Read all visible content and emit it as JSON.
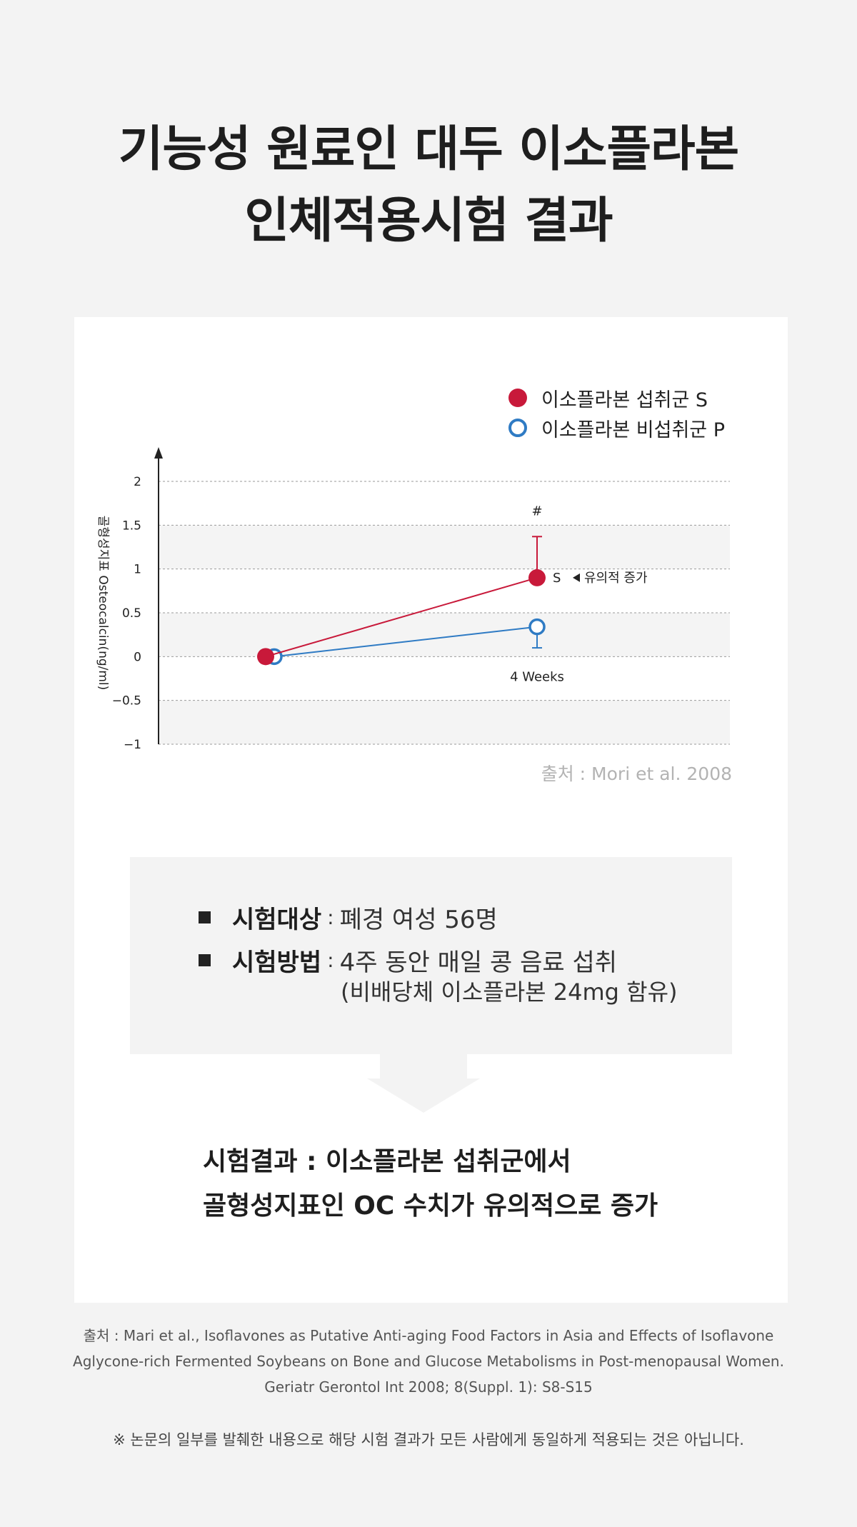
{
  "title": {
    "line1": "기능성 원료인 대두 이소플라본",
    "line2": "인체적용시험 결과"
  },
  "legend": {
    "items": [
      {
        "label": "이소플라본 섭취군 S",
        "style": "filled"
      },
      {
        "label": "이소플라본 비섭취군 P",
        "style": "hollow"
      }
    ]
  },
  "chart_data": {
    "type": "line",
    "ylabel": "골형성지표 Osteocalcin(ng/ml)",
    "ylim": [
      -1,
      2
    ],
    "yticks": [
      {
        "value": 2,
        "label": "2"
      },
      {
        "value": 1.5,
        "label": "1.5"
      },
      {
        "value": 1,
        "label": "1"
      },
      {
        "value": 0.5,
        "label": "0.5"
      },
      {
        "value": 0,
        "label": "0"
      },
      {
        "value": -0.5,
        "label": "−0.5"
      },
      {
        "value": -1,
        "label": "−1"
      }
    ],
    "grid": true,
    "series": [
      {
        "name": "이소플라본 섭취군 S",
        "color": "#c8193a",
        "marker": "filled",
        "x": [
          0,
          4
        ],
        "y": [
          0,
          0.9
        ],
        "error_upper": 0.47
      },
      {
        "name": "이소플라본 비섭취군 P",
        "color": "#2f7bc4",
        "marker": "hollow",
        "x": [
          0,
          4
        ],
        "y": [
          0,
          0.34
        ],
        "error_lower": 0.24
      }
    ],
    "annotations": {
      "significance": "#",
      "s_label": "S",
      "increase_label": "유의적 증가",
      "x_label": "4 Weeks"
    }
  },
  "source_chart": "출처 : Mori et al. 2008",
  "info": {
    "subject_label": "시험대상",
    "subject_text": "폐경 여성 56명",
    "method_label": "시험방법",
    "method_text": "4주 동안 매일 콩 음료 섭취",
    "method_sub": "(비배당체 이소플라본 24mg 함유)",
    "separator": ":"
  },
  "result": {
    "line1": "시험결과 : 이소플라본 섭취군에서",
    "line2": "골형성지표인 OC 수치가 유의적으로 증가"
  },
  "citation": {
    "line1": "출처 : Mari et al., Isoflavones as Putative Anti-aging Food Factors in Asia and Effects of Isoflavone",
    "line2": "Aglycone-rich Fermented Soybeans on Bone and Glucose Metabolisms in Post-menopausal Women.",
    "line3": "Geriatr Gerontol Int 2008; 8(Suppl. 1): S8-S15"
  },
  "disclaimer": "※ 논문의 일부를 발췌한 내용으로 해당 시험 결과가 모든 사람에게 동일하게 적용되는 것은 아닙니다."
}
